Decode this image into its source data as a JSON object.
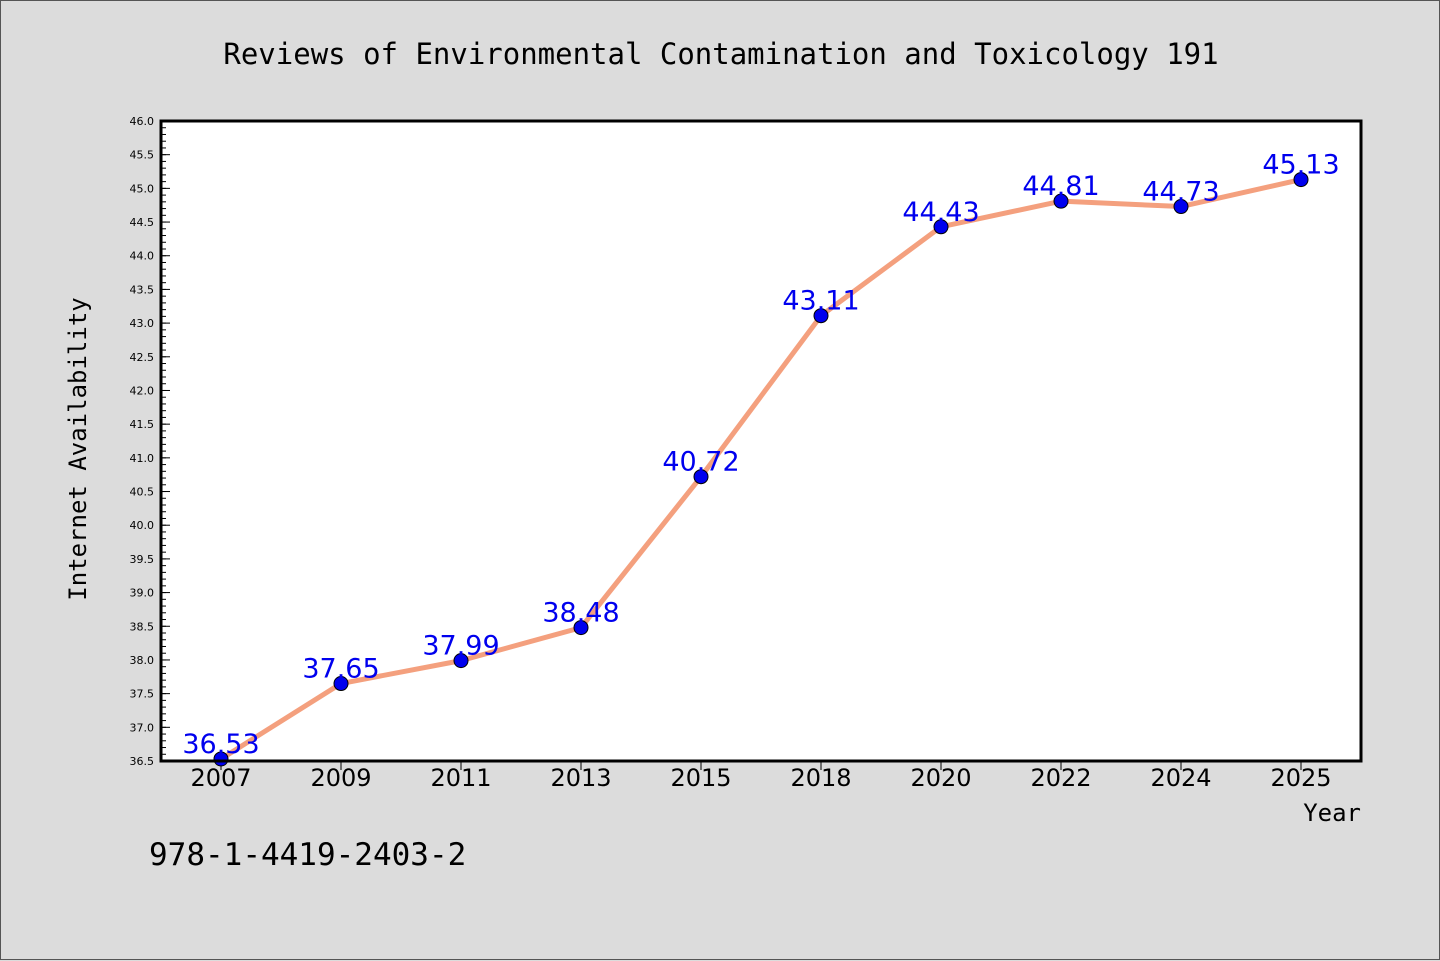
{
  "chart_data": {
    "type": "line",
    "title": "Reviews of Environmental Contamination and Toxicology 191",
    "xlabel": "Year",
    "ylabel": "Internet Availability",
    "categories": [
      "2007",
      "2009",
      "2011",
      "2013",
      "2015",
      "2018",
      "2020",
      "2022",
      "2024",
      "2025"
    ],
    "series": [
      {
        "values": [
          36.53,
          37.65,
          37.99,
          38.48,
          40.72,
          43.11,
          44.43,
          44.81,
          44.73,
          45.13
        ],
        "labels": [
          "36.53",
          "37.65",
          "37.99",
          "38.48",
          "40.72",
          "43.11",
          "44.43",
          "44.81",
          "44.73",
          "45.13"
        ]
      }
    ],
    "ylim": [
      36.5,
      46.0
    ],
    "yticks": [
      "36.5",
      "37.0",
      "37.5",
      "38.0",
      "38.5",
      "39.0",
      "39.5",
      "40.0",
      "40.5",
      "41.0",
      "41.5",
      "42.0",
      "42.5",
      "43.0",
      "43.5",
      "44.0",
      "44.5",
      "45.0",
      "45.5",
      "46.0"
    ],
    "grid": false,
    "line_color": "#f4a07e",
    "marker_color": "#0000ee",
    "label_color": "#0000ee",
    "footer_text": "978-1-4419-2403-2"
  }
}
